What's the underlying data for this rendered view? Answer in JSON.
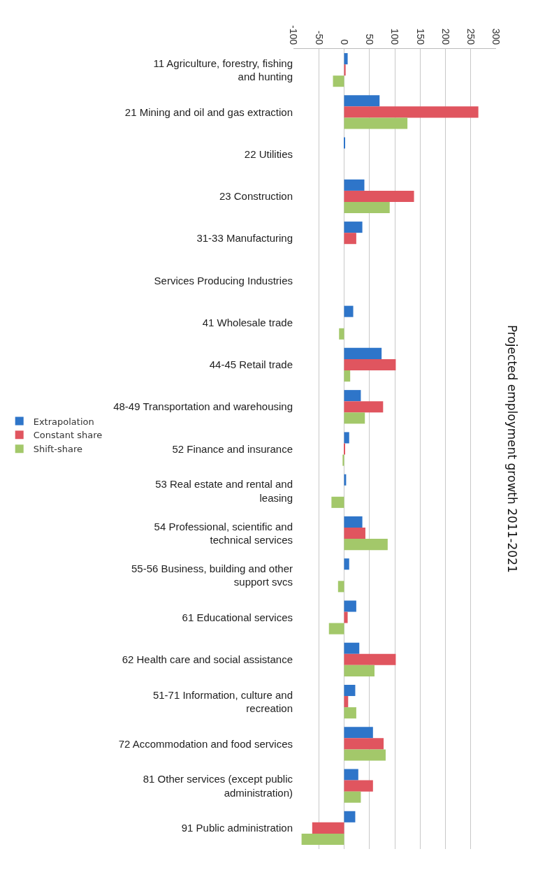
{
  "chart_data": {
    "type": "bar",
    "orientation": "horizontal",
    "title": "Projected employment growth 2011-2021",
    "categories": [
      "11 Agriculture, forestry, fishing and hunting",
      "21 Mining and oil and gas extraction",
      "22 Utilities",
      "23 Construction",
      "31-33 Manufacturing",
      "Services Producing Industries",
      "41 Wholesale trade",
      "44-45 Retail trade",
      "48-49 Transportation and warehousing",
      "52 Finance and insurance",
      "53 Real estate and rental and leasing",
      "54 Professional, scientific and technical services",
      "55-56 Business, building and other support svcs",
      "61 Educational services",
      "62 Health care and social assistance",
      "51-71 Information, culture and recreation",
      "72 Accommodation and food services",
      "81 Other services (except public administration)",
      "91 Public administration"
    ],
    "series": [
      {
        "name": "Extrapolation",
        "color": "#2e75c9",
        "values": [
          7,
          70,
          2,
          40,
          36,
          null,
          18,
          74,
          33,
          10,
          4,
          36,
          10,
          24,
          30,
          22,
          57,
          28,
          22
        ]
      },
      {
        "name": "Constant share",
        "color": "#e0555f",
        "values": [
          3,
          265,
          0,
          138,
          24,
          null,
          0,
          102,
          77,
          2,
          0,
          42,
          0,
          7,
          102,
          8,
          78,
          57,
          -63
        ]
      },
      {
        "name": "Shift-share",
        "color": "#a3c86a",
        "values": [
          -22,
          125,
          0,
          90,
          0,
          null,
          -10,
          12,
          41,
          -3,
          -25,
          86,
          -12,
          -30,
          60,
          24,
          82,
          33,
          -84
        ]
      }
    ],
    "xlim": [
      -100,
      300
    ],
    "xticks": [
      -100,
      -50,
      0,
      50,
      100,
      150,
      200,
      250,
      300
    ],
    "grid": "x",
    "legend": "left"
  }
}
